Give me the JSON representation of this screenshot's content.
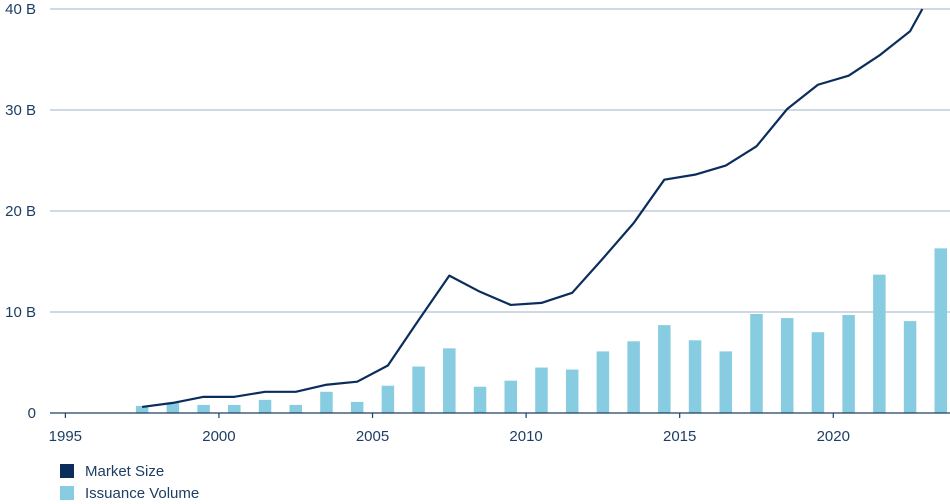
{
  "chart_data": {
    "type": "bar+line",
    "title": "",
    "xlabel": "",
    "ylabel": "",
    "x_ticks": [
      1995,
      2000,
      2005,
      2010,
      2015,
      2020
    ],
    "x_tick_labels": [
      "1995",
      "2000",
      "2005",
      "2010",
      "2015",
      "2020"
    ],
    "xlim": [
      1994.5,
      2023.8
    ],
    "y_ticks": [
      0,
      10,
      20,
      30,
      40
    ],
    "y_tick_labels": [
      "0",
      "10 B",
      "20 B",
      "30 B",
      "40 B"
    ],
    "ylim": [
      0,
      40
    ],
    "grid": true,
    "legend_position": "bottom-left",
    "series": [
      {
        "name": "Market Size",
        "kind": "line",
        "color": "#0b2d5b",
        "points": [
          [
            1997.5,
            0.6
          ],
          [
            1998.5,
            1.0
          ],
          [
            1999.5,
            1.6
          ],
          [
            2000.5,
            1.6
          ],
          [
            2001.5,
            2.1
          ],
          [
            2002.5,
            2.1
          ],
          [
            2003.5,
            2.8
          ],
          [
            2004.5,
            3.1
          ],
          [
            2005.5,
            4.7
          ],
          [
            2006.5,
            9.2
          ],
          [
            2007.5,
            13.6
          ],
          [
            2008.5,
            12.0
          ],
          [
            2009.5,
            10.7
          ],
          [
            2010.5,
            10.9
          ],
          [
            2011.5,
            11.9
          ],
          [
            2012.5,
            15.3
          ],
          [
            2013.5,
            18.8
          ],
          [
            2014.5,
            23.1
          ],
          [
            2015.5,
            23.6
          ],
          [
            2016.5,
            24.5
          ],
          [
            2017.5,
            26.4
          ],
          [
            2018.5,
            30.1
          ],
          [
            2019.5,
            32.5
          ],
          [
            2020.5,
            33.4
          ],
          [
            2021.5,
            35.4
          ],
          [
            2022.5,
            37.8
          ],
          [
            2022.9,
            40.0
          ]
        ]
      },
      {
        "name": "Issuance Volume",
        "kind": "bar",
        "color": "#87cce0",
        "x": [
          1997.5,
          1998.5,
          1999.5,
          2000.5,
          2001.5,
          2002.5,
          2003.5,
          2004.5,
          2005.5,
          2006.5,
          2007.5,
          2008.5,
          2009.5,
          2010.5,
          2011.5,
          2012.5,
          2013.5,
          2014.5,
          2015.5,
          2016.5,
          2017.5,
          2018.5,
          2019.5,
          2020.5,
          2021.5,
          2022.5,
          2023.5
        ],
        "values": [
          0.7,
          1.0,
          0.8,
          0.8,
          1.3,
          0.8,
          2.1,
          1.1,
          2.7,
          4.6,
          6.4,
          2.6,
          3.2,
          4.5,
          4.3,
          6.1,
          7.1,
          8.7,
          7.2,
          6.1,
          9.8,
          9.4,
          8.0,
          9.7,
          13.7,
          9.1,
          16.3
        ]
      }
    ]
  }
}
